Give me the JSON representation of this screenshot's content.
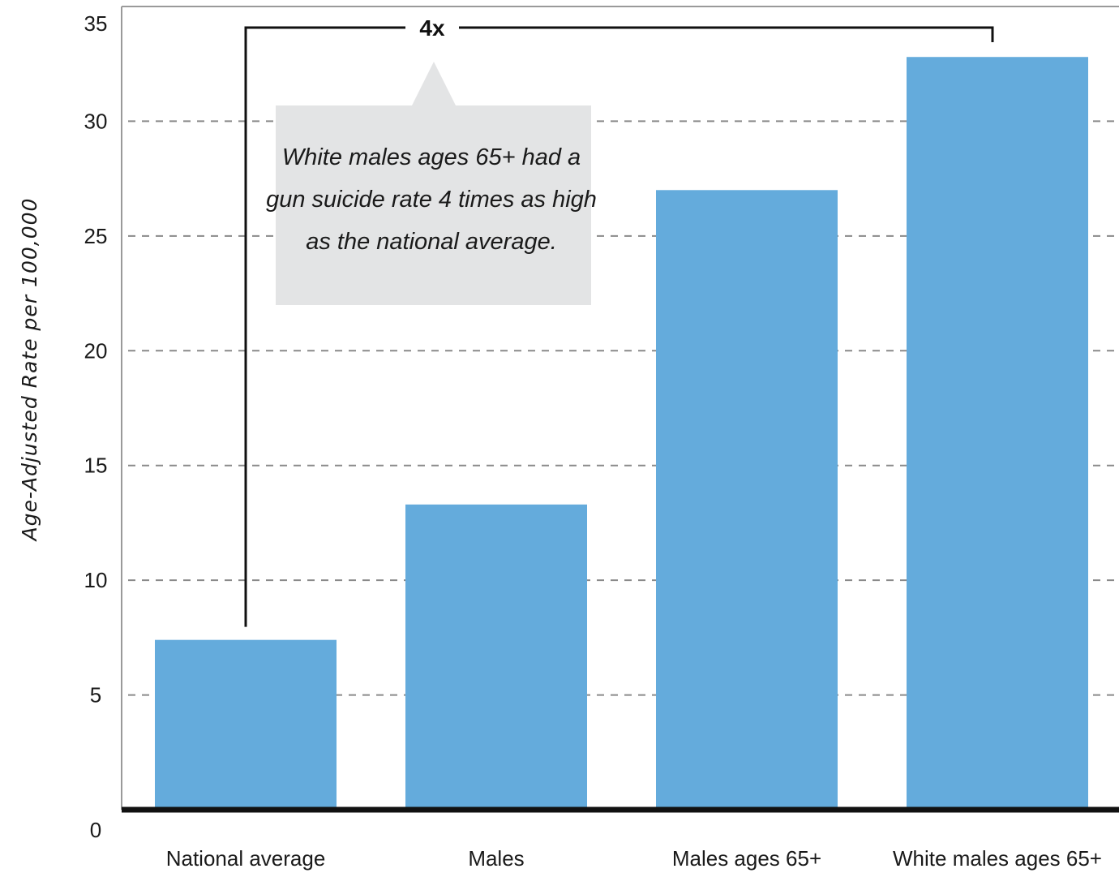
{
  "colors": {
    "bar": "#64abdc",
    "grid": "#8a8a8a",
    "baseline": "#111111",
    "annotation_bg": "#e3e4e5",
    "bracket": "#111111"
  },
  "chart_data": {
    "type": "bar",
    "title": "",
    "xlabel": "",
    "ylabel": "Age-Adjusted Rate per 100,000",
    "categories": [
      "National average",
      "Males",
      "Males ages 65+",
      "White males ages 65+"
    ],
    "values": [
      7.4,
      13.3,
      27.0,
      32.8
    ],
    "ylim": [
      0,
      35
    ],
    "yticks": [
      0,
      5,
      10,
      15,
      20,
      25,
      30,
      35
    ],
    "ytick_labels": [
      "0",
      "5",
      "10",
      "15",
      "20",
      "25",
      "30",
      "35"
    ],
    "grid": "horizontal dashed",
    "legend": "none",
    "annotations": {
      "bracket_label": "4x",
      "bracket_from": "National average",
      "bracket_to": "White males ages 65+",
      "callout_lines": [
        "White males ages 65+ had a",
        "gun suicide rate 4 times as high",
        "as the national average."
      ]
    }
  }
}
